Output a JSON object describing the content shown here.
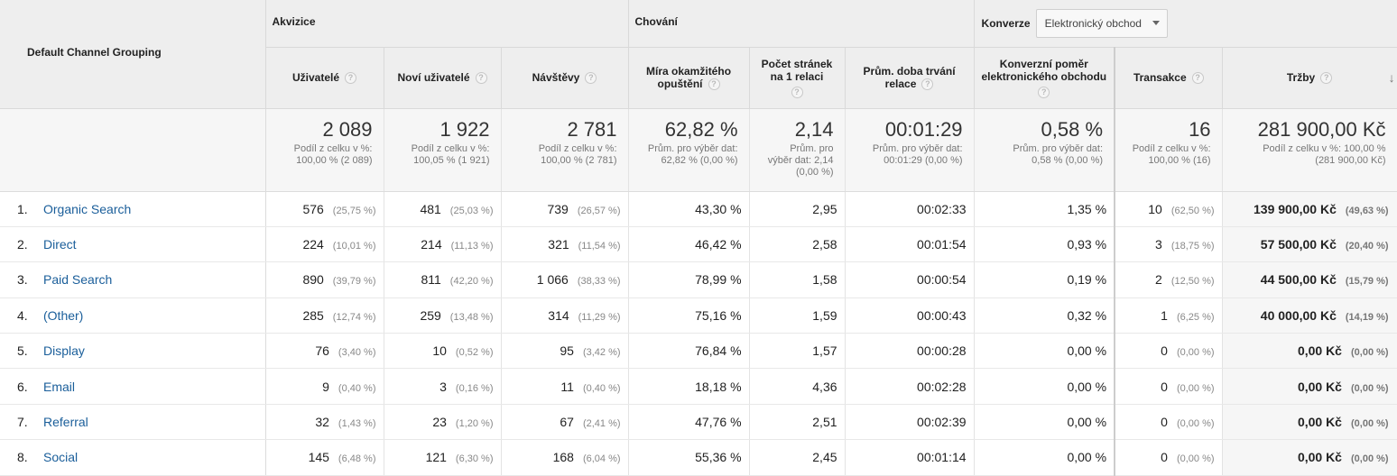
{
  "header": {
    "dimension_label": "Default Channel Grouping",
    "group_acquisition": "Akvizice",
    "group_behavior": "Chování",
    "group_conversion": "Konverze",
    "conversion_select": "Elektronický obchod"
  },
  "columns": {
    "users": "Uživatelé",
    "new_users": "Noví uživatelé",
    "sessions": "Návštěvy",
    "bounce_1": "Míra okamžitého",
    "bounce_2": "opuštění",
    "pages_1": "Počet stránek",
    "pages_2": "na 1 relaci",
    "duration_1": "Prům. doba trvání",
    "duration_2": "relace",
    "conv_rate_1": "Konverzní poměr",
    "conv_rate_2": "elektronického obchodu",
    "transactions": "Transakce",
    "revenue": "Tržby"
  },
  "totals": {
    "users": {
      "value": "2 089",
      "sub1": "Podíl z celku v %:",
      "sub2": "100,00 % (2 089)"
    },
    "new_users": {
      "value": "1 922",
      "sub1": "Podíl z celku v %:",
      "sub2": "100,05 % (1 921)"
    },
    "sessions": {
      "value": "2 781",
      "sub1": "Podíl z celku v %:",
      "sub2": "100,00 % (2 781)"
    },
    "bounce": {
      "value": "62,82 %",
      "sub1": "Prům. pro výběr dat:",
      "sub2": "62,82 % (0,00 %)"
    },
    "pages": {
      "value": "2,14",
      "sub1": "Prům. pro",
      "sub2": "výběr dat: 2,14",
      "sub3": "(0,00 %)"
    },
    "duration": {
      "value": "00:01:29",
      "sub1": "Prům. pro výběr dat:",
      "sub2": "00:01:29 (0,00 %)"
    },
    "conv_rate": {
      "value": "0,58 %",
      "sub1": "Prům. pro výběr dat:",
      "sub2": "0,58 % (0,00 %)"
    },
    "transactions": {
      "value": "16",
      "sub1": "Podíl z celku v %:",
      "sub2": "100,00 % (16)"
    },
    "revenue": {
      "value": "281 900,00 Kč",
      "sub1": "Podíl z celku v %: 100,00 %",
      "sub2": "(281 900,00 Kč)"
    }
  },
  "rows": [
    {
      "idx": "1.",
      "channel": "Organic Search",
      "users": "576",
      "users_pct": "(25,75 %)",
      "new_users": "481",
      "new_users_pct": "(25,03 %)",
      "sessions": "739",
      "sessions_pct": "(26,57 %)",
      "bounce": "43,30 %",
      "pages": "2,95",
      "duration": "00:02:33",
      "conv_rate": "1,35 %",
      "transactions": "10",
      "transactions_pct": "(62,50 %)",
      "revenue": "139 900,00 Kč",
      "revenue_pct": "(49,63 %)"
    },
    {
      "idx": "2.",
      "channel": "Direct",
      "users": "224",
      "users_pct": "(10,01 %)",
      "new_users": "214",
      "new_users_pct": "(11,13 %)",
      "sessions": "321",
      "sessions_pct": "(11,54 %)",
      "bounce": "46,42 %",
      "pages": "2,58",
      "duration": "00:01:54",
      "conv_rate": "0,93 %",
      "transactions": "3",
      "transactions_pct": "(18,75 %)",
      "revenue": "57 500,00 Kč",
      "revenue_pct": "(20,40 %)"
    },
    {
      "idx": "3.",
      "channel": "Paid Search",
      "users": "890",
      "users_pct": "(39,79 %)",
      "new_users": "811",
      "new_users_pct": "(42,20 %)",
      "sessions": "1 066",
      "sessions_pct": "(38,33 %)",
      "bounce": "78,99 %",
      "pages": "1,58",
      "duration": "00:00:54",
      "conv_rate": "0,19 %",
      "transactions": "2",
      "transactions_pct": "(12,50 %)",
      "revenue": "44 500,00 Kč",
      "revenue_pct": "(15,79 %)"
    },
    {
      "idx": "4.",
      "channel": "(Other)",
      "users": "285",
      "users_pct": "(12,74 %)",
      "new_users": "259",
      "new_users_pct": "(13,48 %)",
      "sessions": "314",
      "sessions_pct": "(11,29 %)",
      "bounce": "75,16 %",
      "pages": "1,59",
      "duration": "00:00:43",
      "conv_rate": "0,32 %",
      "transactions": "1",
      "transactions_pct": "(6,25 %)",
      "revenue": "40 000,00 Kč",
      "revenue_pct": "(14,19 %)"
    },
    {
      "idx": "5.",
      "channel": "Display",
      "users": "76",
      "users_pct": "(3,40 %)",
      "new_users": "10",
      "new_users_pct": "(0,52 %)",
      "sessions": "95",
      "sessions_pct": "(3,42 %)",
      "bounce": "76,84 %",
      "pages": "1,57",
      "duration": "00:00:28",
      "conv_rate": "0,00 %",
      "transactions": "0",
      "transactions_pct": "(0,00 %)",
      "revenue": "0,00 Kč",
      "revenue_pct": "(0,00 %)"
    },
    {
      "idx": "6.",
      "channel": "Email",
      "users": "9",
      "users_pct": "(0,40 %)",
      "new_users": "3",
      "new_users_pct": "(0,16 %)",
      "sessions": "11",
      "sessions_pct": "(0,40 %)",
      "bounce": "18,18 %",
      "pages": "4,36",
      "duration": "00:02:28",
      "conv_rate": "0,00 %",
      "transactions": "0",
      "transactions_pct": "(0,00 %)",
      "revenue": "0,00 Kč",
      "revenue_pct": "(0,00 %)"
    },
    {
      "idx": "7.",
      "channel": "Referral",
      "users": "32",
      "users_pct": "(1,43 %)",
      "new_users": "23",
      "new_users_pct": "(1,20 %)",
      "sessions": "67",
      "sessions_pct": "(2,41 %)",
      "bounce": "47,76 %",
      "pages": "2,51",
      "duration": "00:02:39",
      "conv_rate": "0,00 %",
      "transactions": "0",
      "transactions_pct": "(0,00 %)",
      "revenue": "0,00 Kč",
      "revenue_pct": "(0,00 %)"
    },
    {
      "idx": "8.",
      "channel": "Social",
      "users": "145",
      "users_pct": "(6,48 %)",
      "new_users": "121",
      "new_users_pct": "(6,30 %)",
      "sessions": "168",
      "sessions_pct": "(6,04 %)",
      "bounce": "55,36 %",
      "pages": "2,45",
      "duration": "00:01:14",
      "conv_rate": "0,00 %",
      "transactions": "0",
      "transactions_pct": "(0,00 %)",
      "revenue": "0,00 Kč",
      "revenue_pct": "(0,00 %)"
    }
  ]
}
